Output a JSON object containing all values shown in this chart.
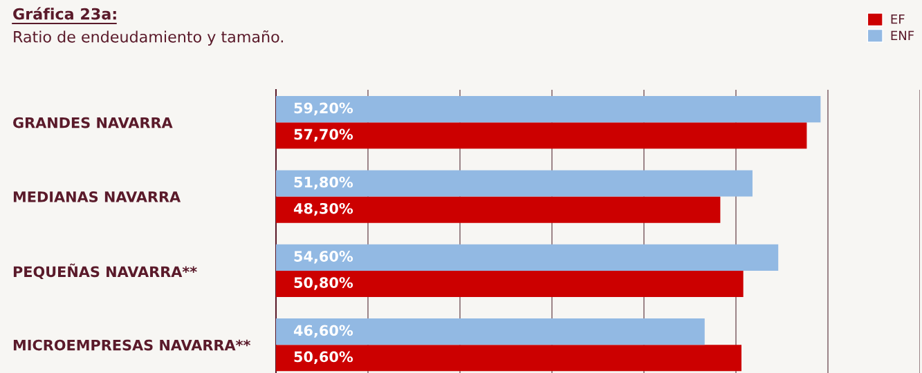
{
  "chart_data": {
    "type": "bar",
    "orientation": "horizontal",
    "title": "Gráfica 23a:",
    "subtitle": "Ratio de endeudamiento y tamaño.",
    "categories": [
      "GRANDES NAVARRA",
      "MEDIANAS NAVARRA",
      "PEQUEÑAS NAVARRA**",
      "MICROEMPRESAS NAVARRA**"
    ],
    "series": [
      {
        "name": "EF",
        "color": "#cc0000",
        "values": [
          57.7,
          48.3,
          50.8,
          50.6
        ],
        "value_labels": [
          "57,70%",
          "48,30%",
          "50,80%",
          "50,60%"
        ]
      },
      {
        "name": "ENF",
        "color": "#92b9e3",
        "values": [
          59.2,
          51.8,
          54.6,
          46.6
        ],
        "value_labels": [
          "59,20%",
          "51,80%",
          "54,60%",
          "46,60%"
        ]
      }
    ],
    "xlim": [
      0,
      70
    ],
    "xticks": [
      {
        "value": 0,
        "label": null
      },
      {
        "value": 10,
        "label": null
      },
      {
        "value": 20,
        "label": null
      },
      {
        "value": 30,
        "label": null
      },
      {
        "value": 40,
        "label": null
      },
      {
        "value": 50,
        "label": null
      },
      {
        "value": 60,
        "label": null
      },
      {
        "value": 70,
        "label": null
      }
    ],
    "grid": "x",
    "legend": "top right",
    "tick_labels": "y"
  }
}
